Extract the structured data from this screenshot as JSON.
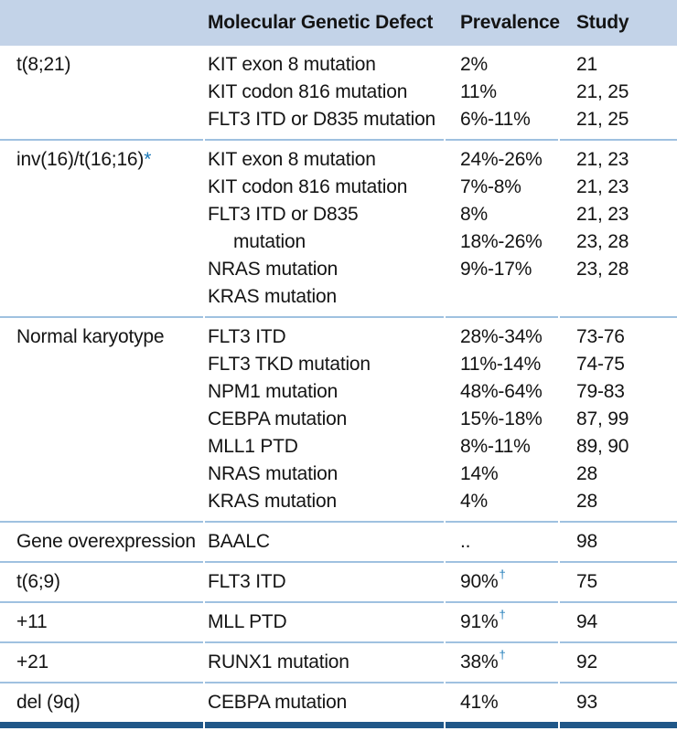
{
  "colors": {
    "header_bg": "#c3d3e8",
    "separator": "#9fc1e0",
    "bottom_bar": "#205788",
    "footnote_accent": "#1b79b8",
    "text": "#141414"
  },
  "table": {
    "headers": [
      "",
      "Molecular Genetic Defect",
      "Prevalence",
      "Study"
    ],
    "sections": [
      {
        "karyotype": "t(8;21)",
        "rows": [
          {
            "defect": "KIT exon 8 mutation",
            "prevalence": "2%",
            "study": "21"
          },
          {
            "defect": "KIT codon 816 mutation",
            "prevalence": "11%",
            "study": "21, 25"
          },
          {
            "defect": "FLT3 ITD or D835 mutation",
            "prevalence": "6%-11%",
            "study": "21, 25"
          }
        ]
      },
      {
        "karyotype": "inv(16)/t(16;16)",
        "karyotype_marker": "*",
        "rows": [
          {
            "defect": "KIT exon 8 mutation",
            "prevalence": "24%-26%",
            "study": "21, 23"
          },
          {
            "defect": "KIT codon 816 mutation",
            "prevalence": "7%-8%",
            "study": "21, 23"
          },
          {
            "defect": "FLT3 ITD or D835",
            "prevalence": "8%",
            "study": "21, 23"
          },
          {
            "defect": "mutation",
            "indent": true,
            "prevalence": "18%-26%",
            "study": "23, 28"
          },
          {
            "defect": "NRAS mutation",
            "prevalence": "9%-17%",
            "study": "23, 28"
          },
          {
            "defect": "KRAS mutation",
            "prevalence": "",
            "study": ""
          }
        ]
      },
      {
        "karyotype": "Normal karyotype",
        "rows": [
          {
            "defect": "FLT3 ITD",
            "prevalence": "28%-34%",
            "study": "73-76"
          },
          {
            "defect": "FLT3 TKD mutation",
            "prevalence": "11%-14%",
            "study": "74-75"
          },
          {
            "defect": "NPM1 mutation",
            "prevalence": "48%-64%",
            "study": "79-83"
          },
          {
            "defect": "CEBPA mutation",
            "prevalence": "15%-18%",
            "study": "87, 99"
          },
          {
            "defect": "MLL1 PTD",
            "prevalence": "8%-11%",
            "study": "89, 90"
          },
          {
            "defect": "NRAS mutation",
            "prevalence": "14%",
            "study": "28"
          },
          {
            "defect": "KRAS mutation",
            "prevalence": "4%",
            "study": "28"
          }
        ]
      },
      {
        "karyotype": "Gene overexpression",
        "rows": [
          {
            "defect": "BAALC",
            "prevalence": "..",
            "study": "98"
          }
        ]
      },
      {
        "karyotype": "t(6;9)",
        "rows": [
          {
            "defect": "FLT3 ITD",
            "prevalence": "90%",
            "prevalence_marker": "†",
            "study": "75"
          }
        ]
      },
      {
        "karyotype": "+11",
        "rows": [
          {
            "defect": "MLL PTD",
            "prevalence": "91%",
            "prevalence_marker": "†",
            "study": "94"
          }
        ]
      },
      {
        "karyotype": "+21",
        "rows": [
          {
            "defect": "RUNX1 mutation",
            "prevalence": "38%",
            "prevalence_marker": "†",
            "study": "92"
          }
        ]
      },
      {
        "karyotype": "del (9q)",
        "rows": [
          {
            "defect": "CEBPA mutation",
            "prevalence": "41%",
            "study": "93"
          }
        ]
      }
    ]
  }
}
